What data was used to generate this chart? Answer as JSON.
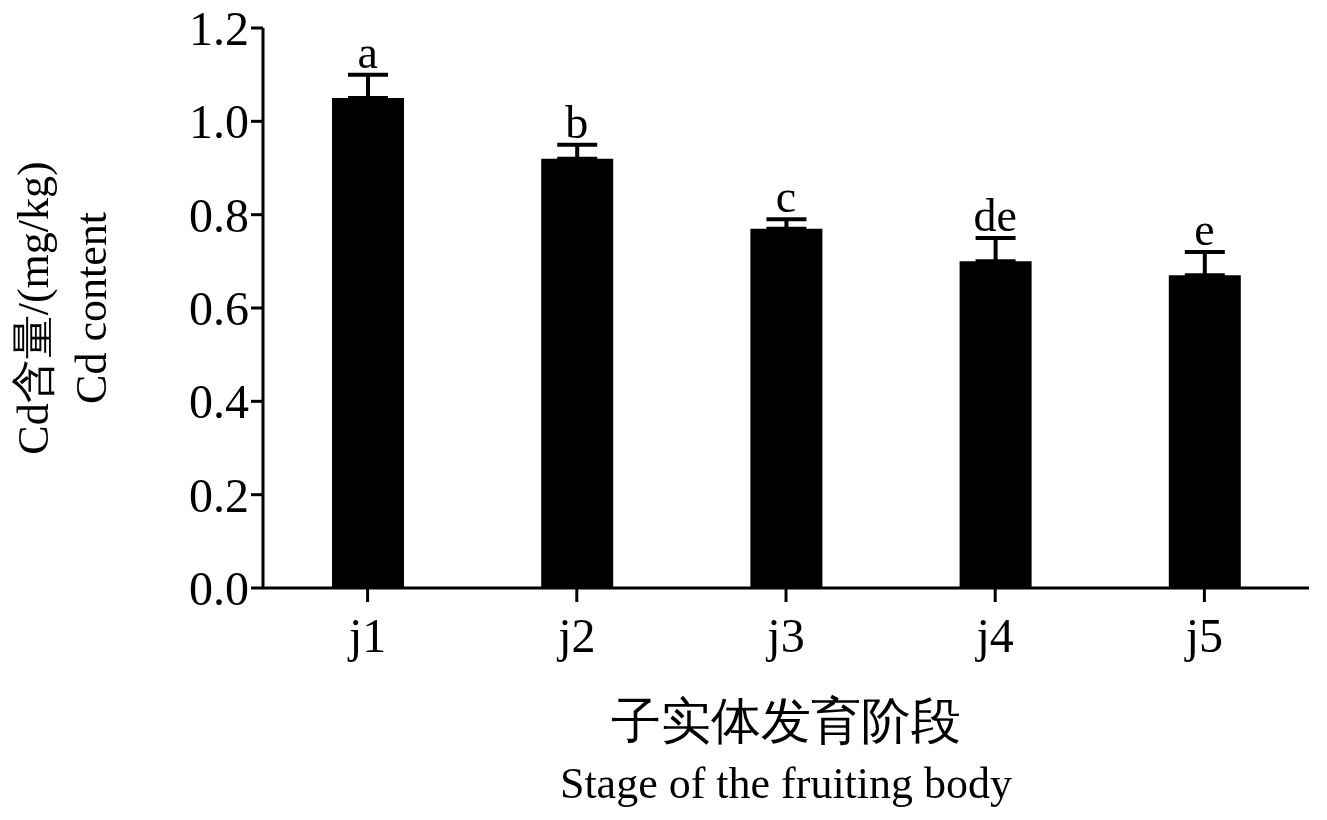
{
  "chart_data": {
    "type": "bar",
    "xlabel": "子实体发育阶段\nStage of the fruiting body",
    "ylabel": "Cd含量/(mg/kg)\nCd content",
    "categories": [
      "j1",
      "j2",
      "j3",
      "j4",
      "j5"
    ],
    "values": [
      1.05,
      0.92,
      0.77,
      0.7,
      0.67
    ],
    "errors": [
      [
        1.05,
        1.1
      ],
      [
        0.92,
        0.95
      ],
      [
        0.77,
        0.79
      ],
      [
        0.7,
        0.75
      ],
      [
        0.67,
        0.72
      ]
    ],
    "color": "#000000",
    "ylim": [
      0,
      1.2
    ],
    "yticks": [
      {
        "value": 0,
        "label": "0.0"
      },
      {
        "value": 0.2,
        "label": "0.2"
      },
      {
        "value": 0.4,
        "label": "0.4"
      },
      {
        "value": 0.6,
        "label": "0.6"
      },
      {
        "value": 0.8,
        "label": "0.8"
      },
      {
        "value": 1,
        "label": "1.0"
      },
      {
        "value": 1.2,
        "label": "1.2"
      }
    ],
    "annotations": [
      {
        "text": "a",
        "x": "j1",
        "y": 1.1
      },
      {
        "text": "b",
        "x": "j2",
        "y": 0.95
      },
      {
        "text": "c",
        "x": "j3",
        "y": 0.79
      },
      {
        "text": "de",
        "x": "j4",
        "y": 0.75
      },
      {
        "text": "e",
        "x": "j5",
        "y": 0.72
      }
    ]
  }
}
